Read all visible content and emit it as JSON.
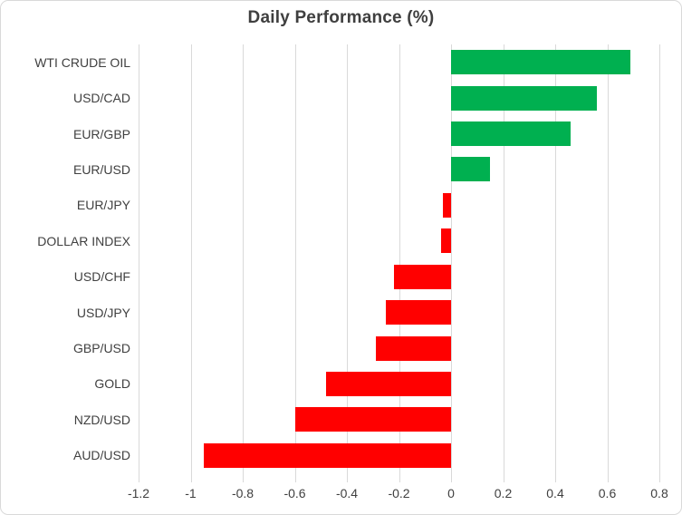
{
  "chart": {
    "title": "Daily Performance (%)"
  },
  "chart_data": {
    "type": "bar",
    "orientation": "horizontal",
    "title": "Daily Performance (%)",
    "categories": [
      "WTI CRUDE OIL",
      "USD/CAD",
      "EUR/GBP",
      "EUR/USD",
      "EUR/JPY",
      "DOLLAR INDEX",
      "USD/CHF",
      "USD/JPY",
      "GBP/USD",
      "GOLD",
      "NZD/USD",
      "AUD/USD"
    ],
    "values": [
      0.69,
      0.56,
      0.46,
      0.15,
      -0.03,
      -0.04,
      -0.22,
      -0.25,
      -0.29,
      -0.48,
      -0.6,
      -0.95
    ],
    "xlabel": "",
    "ylabel": "",
    "xlim": [
      -1.2,
      0.8
    ],
    "xticks": [
      -1.2,
      -1.0,
      -0.8,
      -0.6,
      -0.4,
      -0.2,
      0,
      0.2,
      0.4,
      0.6,
      0.8
    ],
    "xtick_labels": [
      "-1.2",
      "-1",
      "-0.8",
      "-0.6",
      "-0.4",
      "-0.2",
      "0",
      "0.2",
      "0.4",
      "0.6",
      "0.8"
    ],
    "grid": true,
    "legend": false,
    "colors": {
      "positive": "#00B050",
      "negative": "#FF0000",
      "gridline": "#D9D9D9",
      "text": "#404040"
    }
  }
}
